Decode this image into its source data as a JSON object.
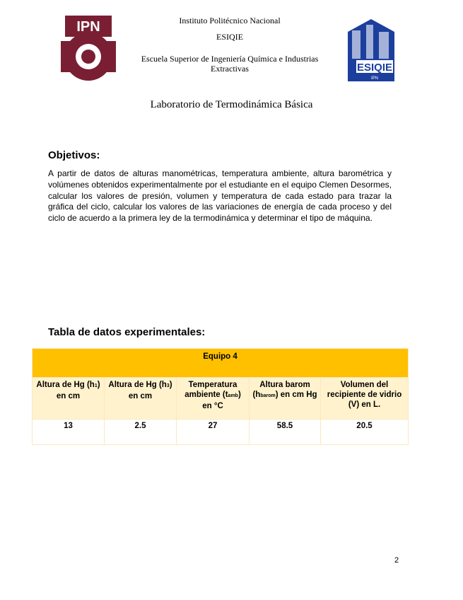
{
  "header": {
    "institution": "Instituto Politécnico Nacional",
    "school_abbr": "ESIQIE",
    "school_name_line1": "Escuela Superior de Ingeniería Química e Industrias",
    "school_name_line2": "Extractivas",
    "logo_left_text": "IPN",
    "logo_right_text": "ESIQIE",
    "logo_right_sub": "IPN"
  },
  "title": "Laboratorio de Termodinámica Básica",
  "objectives": {
    "heading": "Objetivos:",
    "text": "A partir de datos de alturas manométricas, temperatura ambiente, altura barométrica y volúmenes obtenidos experimentalmente por el estudiante en el equipo Clemen Desormes, calcular los valores de presión, volumen y temperatura de cada estado para trazar la gráfica del ciclo, calcular los valores de las variaciones de energía de cada proceso y del ciclo de acuerdo a la primera ley de la termodinámica y determinar el tipo de máquina."
  },
  "table": {
    "heading": "Tabla de datos experimentales:",
    "group": "Equipo 4",
    "columns": [
      {
        "pre": "Altura de Hg (h",
        "sub": "1",
        "post": ") en cm"
      },
      {
        "pre": "Altura de Hg (h",
        "sub": "3",
        "post": ") en cm"
      },
      {
        "pre": "Temperatura ambiente (t",
        "sub": "amb",
        "post": ") en °C"
      },
      {
        "pre": "Altura barom (h",
        "sub": "barom",
        "post": ") en cm Hg"
      },
      {
        "pre": "Volumen del recipiente de vidrio (V) en L.",
        "sub": "",
        "post": ""
      }
    ],
    "values": [
      "13",
      "2.5",
      "27",
      "58.5",
      "20.5"
    ],
    "colors": {
      "group_bg": "#FFC000",
      "header_bg": "#FFF2CC"
    }
  },
  "page_number": "2"
}
